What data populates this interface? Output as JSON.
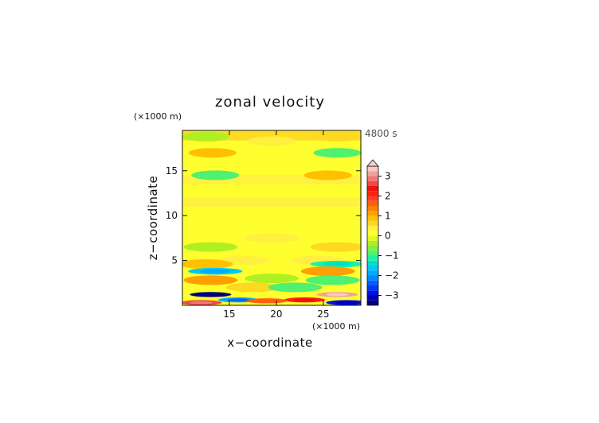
{
  "chart_data": {
    "type": "heatmap",
    "title": "zonal velocity",
    "xlabel": "x−coordinate",
    "ylabel": "z−coordinate",
    "x_unit": "(×1000 m)",
    "y_unit": "(×1000 m)",
    "time_label": "4800 s",
    "xlim": [
      10,
      29
    ],
    "ylim": [
      0,
      19.5
    ],
    "x_ticks": [
      15,
      20,
      25
    ],
    "x_tick_labels": [
      "15",
      "20",
      "25"
    ],
    "y_ticks": [
      5,
      10,
      15
    ],
    "y_tick_labels": [
      "5",
      "10",
      "15"
    ],
    "colorbar": {
      "range": [
        -3.5,
        3.5
      ],
      "ticks": [
        -3,
        -2,
        -1,
        0,
        1,
        2,
        3
      ],
      "tick_labels": [
        "−3",
        "−2",
        "−1",
        "0",
        "1",
        "2",
        "3"
      ],
      "levels": [
        -3.5,
        -3.25,
        -3,
        -2.75,
        -2.5,
        -2.25,
        -2,
        -1.75,
        -1.5,
        -1.25,
        -1,
        -0.75,
        -0.5,
        -0.25,
        0,
        0.25,
        0.5,
        0.75,
        1,
        1.25,
        1.5,
        1.75,
        2,
        2.25,
        2.5,
        2.75,
        3,
        3.25,
        3.5
      ],
      "colors": [
        "#00007a",
        "#0000b4",
        "#0010e6",
        "#0038f5",
        "#0060ff",
        "#0088ff",
        "#00aaff",
        "#00c8f0",
        "#00e0c8",
        "#20f0a0",
        "#50f070",
        "#80f040",
        "#b0f020",
        "#e0f820",
        "#ffff30",
        "#fff040",
        "#ffd820",
        "#ffc000",
        "#ffa000",
        "#ff8000",
        "#ff6010",
        "#ff4020",
        "#ff2010",
        "#f01010",
        "#f04848",
        "#f07878",
        "#f0a0a0",
        "#f8c8c8"
      ],
      "extend": "max"
    },
    "features": [
      {
        "x": 19.5,
        "z": 18.3,
        "value": 0.3
      },
      {
        "x": 12.5,
        "z": 18.8,
        "value": -0.3
      },
      {
        "x": 26.5,
        "z": 18.8,
        "value": 0.7
      },
      {
        "x": 13.2,
        "z": 17.0,
        "value": 0.8
      },
      {
        "x": 26.5,
        "z": 17.0,
        "value": -0.9
      },
      {
        "x": 13.5,
        "z": 14.5,
        "value": -0.9
      },
      {
        "x": 25.5,
        "z": 14.5,
        "value": 0.8
      },
      {
        "x": 19.5,
        "z": 7.5,
        "value": 0.3
      },
      {
        "x": 13.0,
        "z": 6.5,
        "value": -0.5
      },
      {
        "x": 26.5,
        "z": 6.5,
        "value": 0.5
      },
      {
        "x": 16.5,
        "z": 5.0,
        "value": 0.3
      },
      {
        "x": 24.5,
        "z": 5.0,
        "value": 0.3
      },
      {
        "x": 12.5,
        "z": 4.6,
        "value": 0.8
      },
      {
        "x": 26.5,
        "z": 4.6,
        "value": -1.2
      },
      {
        "x": 13.5,
        "z": 3.8,
        "value": -1.6
      },
      {
        "x": 25.5,
        "z": 3.8,
        "value": 1.0
      },
      {
        "x": 19.5,
        "z": 3.0,
        "value": -0.3
      },
      {
        "x": 13.0,
        "z": 2.8,
        "value": 1.0
      },
      {
        "x": 26.0,
        "z": 2.8,
        "value": -1.0
      },
      {
        "x": 17.5,
        "z": 2.0,
        "value": 0.7
      },
      {
        "x": 22.0,
        "z": 2.0,
        "value": -0.8
      },
      {
        "x": 13.0,
        "z": 1.2,
        "value": -3.4
      },
      {
        "x": 26.5,
        "z": 1.2,
        "value": 3.0
      },
      {
        "x": 16.0,
        "z": 0.6,
        "value": -2.0
      },
      {
        "x": 23.0,
        "z": 0.6,
        "value": 2.0
      },
      {
        "x": 19.0,
        "z": 0.5,
        "value": 1.5
      },
      {
        "x": 12.0,
        "z": 0.3,
        "value": 2.5
      },
      {
        "x": 27.5,
        "z": 0.3,
        "value": -2.8
      }
    ]
  }
}
